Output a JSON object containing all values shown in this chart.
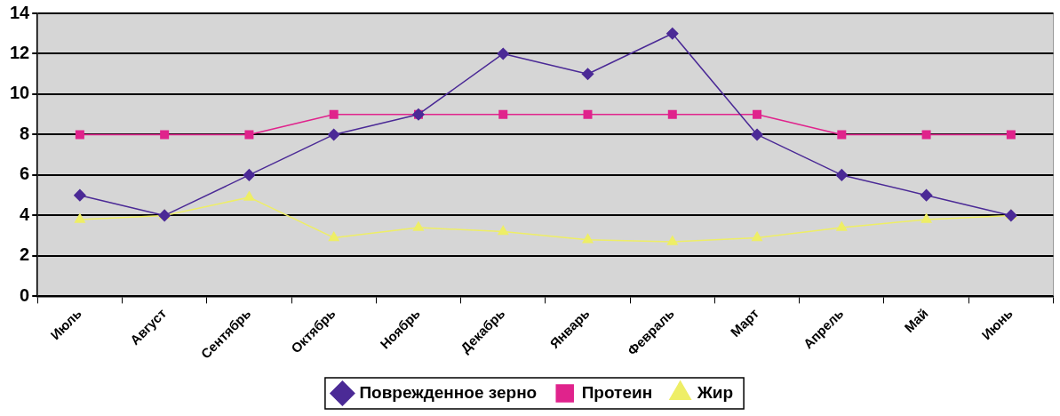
{
  "chart_data": {
    "type": "line",
    "categories": [
      "Июль",
      "Август",
      "Сентябрь",
      "Октябрь",
      "Ноябрь",
      "Декабрь",
      "Январь",
      "Февраль",
      "Март",
      "Апрель",
      "Май",
      "Июнь"
    ],
    "series": [
      {
        "name": "Поврежденное зерно",
        "color": "#4b2a96",
        "marker": "diamond",
        "values": [
          5,
          4,
          6,
          8,
          9,
          12,
          11,
          13,
          8,
          6,
          5,
          4
        ]
      },
      {
        "name": "Протеин",
        "color": "#e0238c",
        "marker": "square",
        "values": [
          8,
          8,
          8,
          9,
          9,
          9,
          9,
          9,
          9,
          8,
          8,
          8
        ]
      },
      {
        "name": "Жир",
        "color": "#eeee66",
        "marker": "triangle",
        "values": [
          3.8,
          4,
          4.9,
          2.9,
          3.4,
          3.2,
          2.8,
          2.7,
          2.9,
          3.4,
          3.8,
          4
        ]
      }
    ],
    "ylim": [
      0,
      14
    ],
    "yticks": [
      0,
      2,
      4,
      6,
      8,
      10,
      12,
      14
    ],
    "grid": "y",
    "legend": "bottom",
    "line_style": "solid"
  }
}
